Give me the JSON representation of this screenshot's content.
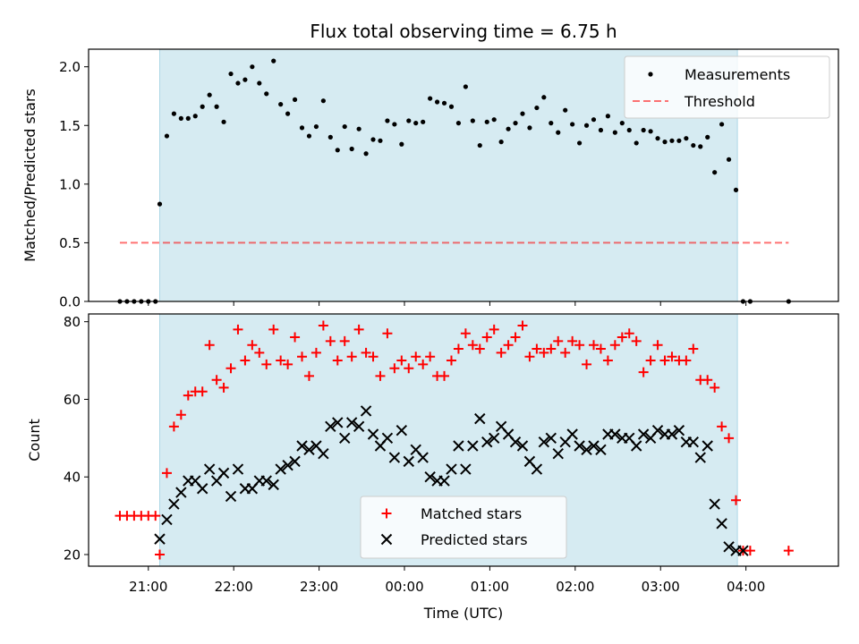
{
  "title": "Flux total observing time = 6.75 h",
  "colors": {
    "shade": "#add8e6",
    "measurement": "#000000",
    "threshold": "#ff0000",
    "matched": "#ff0000",
    "predicted": "#000000"
  },
  "chart_data": [
    {
      "type": "scatter",
      "panel": "top",
      "ylabel": "Matched/Predicted stars",
      "ylim": [
        0,
        2.15
      ],
      "yticks": [
        0.0,
        0.5,
        1.0,
        1.5,
        2.0
      ],
      "ytick_labels": [
        "0.0",
        "0.5",
        "1.0",
        "1.5",
        "2.0"
      ],
      "shaded_span": [
        "21:08",
        "03:54"
      ],
      "threshold": {
        "name": "Threshold",
        "value": 0.5,
        "x_range": [
          "20:40",
          "04:30"
        ],
        "style": "dashed"
      },
      "legend": {
        "position": "top-right",
        "entries": [
          "Measurements",
          "Threshold"
        ]
      },
      "series": [
        {
          "name": "Measurements",
          "marker": "dot",
          "x": [
            "20:40",
            "20:45",
            "20:50",
            "20:55",
            "21:00",
            "21:05",
            "21:08",
            "21:13",
            "21:18",
            "21:23",
            "21:28",
            "21:33",
            "21:38",
            "21:43",
            "21:48",
            "21:53",
            "21:58",
            "22:03",
            "22:08",
            "22:13",
            "22:18",
            "22:23",
            "22:28",
            "22:33",
            "22:38",
            "22:43",
            "22:48",
            "22:53",
            "22:58",
            "23:03",
            "23:08",
            "23:13",
            "23:18",
            "23:23",
            "23:28",
            "23:33",
            "23:38",
            "23:43",
            "23:48",
            "23:53",
            "23:58",
            "00:03",
            "00:08",
            "00:13",
            "00:18",
            "00:23",
            "00:28",
            "00:33",
            "00:38",
            "00:43",
            "00:48",
            "00:53",
            "00:58",
            "01:03",
            "01:08",
            "01:13",
            "01:18",
            "01:23",
            "01:28",
            "01:33",
            "01:38",
            "01:43",
            "01:48",
            "01:53",
            "01:58",
            "02:03",
            "02:08",
            "02:13",
            "02:18",
            "02:23",
            "02:28",
            "02:33",
            "02:38",
            "02:43",
            "02:48",
            "02:53",
            "02:58",
            "03:03",
            "03:08",
            "03:13",
            "03:18",
            "03:23",
            "03:28",
            "03:33",
            "03:38",
            "03:43",
            "03:48",
            "03:53",
            "03:58",
            "04:03",
            "04:30"
          ],
          "y": [
            0,
            0,
            0,
            0,
            0,
            0,
            0.83,
            1.41,
            1.6,
            1.56,
            1.56,
            1.58,
            1.66,
            1.76,
            1.66,
            1.53,
            1.94,
            1.86,
            1.89,
            2.0,
            1.86,
            1.77,
            2.05,
            1.68,
            1.6,
            1.72,
            1.48,
            1.41,
            1.49,
            1.71,
            1.4,
            1.29,
            1.49,
            1.3,
            1.47,
            1.26,
            1.38,
            1.37,
            1.54,
            1.51,
            1.34,
            1.54,
            1.52,
            1.53,
            1.73,
            1.7,
            1.69,
            1.66,
            1.52,
            1.83,
            1.54,
            1.33,
            1.53,
            1.55,
            1.36,
            1.47,
            1.52,
            1.6,
            1.48,
            1.65,
            1.74,
            1.52,
            1.44,
            1.63,
            1.51,
            1.35,
            1.5,
            1.55,
            1.46,
            1.58,
            1.44,
            1.52,
            1.46,
            1.35,
            1.46,
            1.45,
            1.39,
            1.36,
            1.37,
            1.37,
            1.39,
            1.33,
            1.32,
            1.4,
            1.1,
            1.51,
            1.21,
            0.95,
            0,
            0,
            0
          ]
        }
      ]
    },
    {
      "type": "scatter",
      "panel": "bottom",
      "xlabel": "Time (UTC)",
      "ylabel": "Count",
      "ylim": [
        17,
        82
      ],
      "yticks": [
        20,
        40,
        60,
        80
      ],
      "xticks": [
        "21:00",
        "22:00",
        "23:00",
        "00:00",
        "01:00",
        "02:00",
        "03:00",
        "04:00"
      ],
      "xlim": [
        "20:18",
        "05:05"
      ],
      "shaded_span": [
        "21:08",
        "03:54"
      ],
      "legend": {
        "position": "lower-center",
        "entries": [
          "Matched stars",
          "Predicted stars"
        ]
      },
      "series": [
        {
          "name": "Matched stars",
          "marker": "plus",
          "x": [
            "20:40",
            "20:45",
            "20:50",
            "20:55",
            "21:00",
            "21:05",
            "21:08",
            "21:13",
            "21:18",
            "21:23",
            "21:28",
            "21:33",
            "21:38",
            "21:43",
            "21:48",
            "21:53",
            "21:58",
            "22:03",
            "22:08",
            "22:13",
            "22:18",
            "22:23",
            "22:28",
            "22:33",
            "22:38",
            "22:43",
            "22:48",
            "22:53",
            "22:58",
            "23:03",
            "23:08",
            "23:13",
            "23:18",
            "23:23",
            "23:28",
            "23:33",
            "23:38",
            "23:43",
            "23:48",
            "23:53",
            "23:58",
            "00:03",
            "00:08",
            "00:13",
            "00:18",
            "00:23",
            "00:28",
            "00:33",
            "00:38",
            "00:43",
            "00:48",
            "00:53",
            "00:58",
            "01:03",
            "01:08",
            "01:13",
            "01:18",
            "01:23",
            "01:28",
            "01:33",
            "01:38",
            "01:43",
            "01:48",
            "01:53",
            "01:58",
            "02:03",
            "02:08",
            "02:13",
            "02:18",
            "02:23",
            "02:28",
            "02:33",
            "02:38",
            "02:43",
            "02:48",
            "02:53",
            "02:58",
            "03:03",
            "03:08",
            "03:13",
            "03:18",
            "03:23",
            "03:28",
            "03:33",
            "03:38",
            "03:43",
            "03:48",
            "03:53",
            "03:58",
            "04:03",
            "04:30"
          ],
          "y": [
            30,
            30,
            30,
            30,
            30,
            30,
            20,
            41,
            53,
            56,
            61,
            62,
            62,
            74,
            65,
            63,
            68,
            78,
            70,
            74,
            72,
            69,
            78,
            70,
            69,
            76,
            71,
            66,
            72,
            79,
            75,
            70,
            75,
            71,
            78,
            72,
            71,
            66,
            77,
            68,
            70,
            68,
            71,
            69,
            71,
            66,
            66,
            70,
            73,
            77,
            74,
            73,
            76,
            78,
            72,
            74,
            76,
            79,
            71,
            73,
            72,
            73,
            75,
            72,
            75,
            74,
            69,
            74,
            73,
            70,
            74,
            76,
            77,
            75,
            67,
            70,
            74,
            70,
            71,
            70,
            70,
            73,
            65,
            65,
            63,
            53,
            50,
            34,
            21,
            21,
            21
          ]
        },
        {
          "name": "Predicted stars",
          "marker": "x",
          "x": [
            "21:08",
            "21:13",
            "21:18",
            "21:23",
            "21:28",
            "21:33",
            "21:38",
            "21:43",
            "21:48",
            "21:53",
            "21:58",
            "22:03",
            "22:08",
            "22:13",
            "22:18",
            "22:23",
            "22:28",
            "22:33",
            "22:38",
            "22:43",
            "22:48",
            "22:53",
            "22:58",
            "23:03",
            "23:08",
            "23:13",
            "23:18",
            "23:23",
            "23:28",
            "23:33",
            "23:38",
            "23:43",
            "23:48",
            "23:53",
            "23:58",
            "00:03",
            "00:08",
            "00:13",
            "00:18",
            "00:23",
            "00:28",
            "00:33",
            "00:38",
            "00:43",
            "00:48",
            "00:53",
            "00:58",
            "01:03",
            "01:08",
            "01:13",
            "01:18",
            "01:23",
            "01:28",
            "01:33",
            "01:38",
            "01:43",
            "01:48",
            "01:53",
            "01:58",
            "02:03",
            "02:08",
            "02:13",
            "02:18",
            "02:23",
            "02:28",
            "02:33",
            "02:38",
            "02:43",
            "02:48",
            "02:53",
            "02:58",
            "03:03",
            "03:08",
            "03:13",
            "03:18",
            "03:23",
            "03:28",
            "03:33",
            "03:38",
            "03:43",
            "03:48",
            "03:53",
            "03:58"
          ],
          "y": [
            24,
            29,
            33,
            36,
            39,
            39,
            37,
            42,
            39,
            41,
            35,
            42,
            37,
            37,
            39,
            39,
            38,
            42,
            43,
            44,
            48,
            47,
            48,
            46,
            53,
            54,
            50,
            54,
            53,
            57,
            51,
            48,
            50,
            45,
            52,
            44,
            47,
            45,
            40,
            39,
            39,
            42,
            48,
            42,
            48,
            55,
            49,
            50,
            53,
            51,
            49,
            48,
            44,
            42,
            49,
            50,
            46,
            49,
            51,
            48,
            47,
            48,
            47,
            51,
            51,
            50,
            50,
            48,
            51,
            50,
            52,
            51,
            51,
            52,
            49,
            49,
            45,
            48,
            33,
            28,
            22,
            21,
            21
          ]
        }
      ]
    }
  ]
}
